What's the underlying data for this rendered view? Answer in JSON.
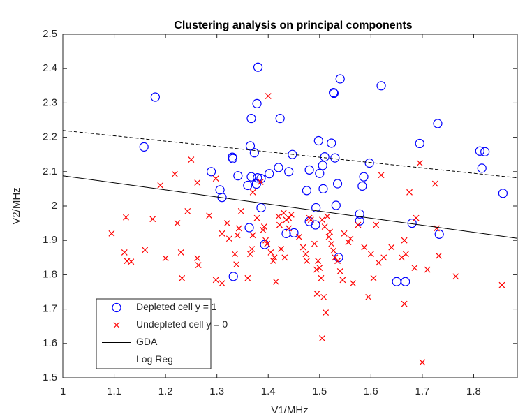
{
  "chart_data": {
    "type": "scatter",
    "title": "Clustering analysis on principal components",
    "x_label": "V1/MHz",
    "y_label": "V2/MHz",
    "xlim": [
      1,
      1.885
    ],
    "ylim": [
      1.5,
      2.5
    ],
    "xticks": [
      1,
      1.1,
      1.2,
      1.3,
      1.4,
      1.5,
      1.6,
      1.7,
      1.8
    ],
    "yticks": [
      1.5,
      1.6,
      1.7,
      1.8,
      1.9,
      2,
      2.1,
      2.2,
      2.3,
      2.4,
      2.5
    ],
    "legend": "lower-left",
    "series": [
      {
        "name": "Depleted cell y = 1",
        "color": "#0000ff",
        "marker": "circle",
        "x": [
          1.18,
          1.158,
          1.38,
          1.54,
          1.62,
          1.527,
          1.528,
          1.378,
          1.367,
          1.423,
          1.73,
          1.498,
          1.523,
          1.695,
          1.365,
          1.812,
          1.822,
          1.373,
          1.447,
          1.51,
          1.53,
          1.33,
          1.331,
          1.597,
          1.506,
          1.816,
          1.289,
          1.48,
          1.42,
          1.44,
          1.402,
          1.5,
          1.586,
          1.341,
          1.367,
          1.379,
          1.386,
          1.535,
          1.36,
          1.377,
          1.583,
          1.306,
          1.475,
          1.507,
          1.532,
          1.857,
          1.31,
          1.386,
          1.493,
          1.578,
          1.578,
          1.48,
          1.68,
          1.492,
          1.435,
          1.45,
          1.733,
          1.363,
          1.393,
          1.537,
          1.332,
          1.65,
          1.667
        ],
        "values": [
          2.317,
          2.172,
          2.404,
          2.37,
          2.35,
          2.33,
          2.328,
          2.298,
          2.255,
          2.255,
          2.24,
          2.19,
          2.183,
          2.182,
          2.175,
          2.16,
          2.158,
          2.155,
          2.15,
          2.143,
          2.14,
          2.142,
          2.138,
          2.125,
          2.118,
          2.11,
          2.1,
          2.105,
          2.112,
          2.1,
          2.094,
          2.095,
          2.085,
          2.088,
          2.085,
          2.082,
          2.08,
          2.065,
          2.06,
          2.064,
          2.058,
          2.047,
          2.045,
          2.05,
          2.002,
          2.037,
          2.025,
          1.995,
          1.995,
          1.977,
          1.957,
          1.955,
          1.95,
          1.945,
          1.92,
          1.922,
          1.918,
          1.937,
          1.888,
          1.85,
          1.795,
          1.78,
          1.78
        ]
      },
      {
        "name": "Undepleted cell y = 0",
        "color": "#ff0000",
        "marker": "cross",
        "x": [
          1.095,
          1.12,
          1.123,
          1.125,
          1.133,
          1.16,
          1.175,
          1.19,
          1.2,
          1.218,
          1.223,
          1.23,
          1.232,
          1.243,
          1.25,
          1.262,
          1.262,
          1.264,
          1.285,
          1.298,
          1.298,
          1.31,
          1.31,
          1.32,
          1.324,
          1.335,
          1.338,
          1.34,
          1.343,
          1.347,
          1.36,
          1.365,
          1.368,
          1.37,
          1.37,
          1.378,
          1.385,
          1.39,
          1.392,
          1.395,
          1.398,
          1.4,
          1.405,
          1.41,
          1.412,
          1.415,
          1.42,
          1.422,
          1.425,
          1.43,
          1.432,
          1.435,
          1.44,
          1.44,
          1.445,
          1.46,
          1.468,
          1.473,
          1.475,
          1.48,
          1.483,
          1.49,
          1.494,
          1.495,
          1.497,
          1.5,
          1.503,
          1.505,
          1.505,
          1.508,
          1.51,
          1.512,
          1.515,
          1.518,
          1.52,
          1.523,
          1.527,
          1.53,
          1.535,
          1.54,
          1.545,
          1.548,
          1.556,
          1.56,
          1.565,
          1.575,
          1.587,
          1.595,
          1.6,
          1.605,
          1.61,
          1.615,
          1.62,
          1.625,
          1.64,
          1.66,
          1.665,
          1.665,
          1.668,
          1.675,
          1.685,
          1.688,
          1.695,
          1.7,
          1.71,
          1.725,
          1.728,
          1.732,
          1.765,
          1.855
        ],
        "values": [
          1.92,
          1.865,
          1.967,
          1.84,
          1.838,
          1.872,
          1.962,
          2.06,
          1.848,
          2.093,
          1.95,
          1.865,
          1.79,
          1.985,
          2.135,
          2.068,
          1.848,
          1.828,
          1.972,
          2.08,
          1.785,
          1.775,
          1.92,
          1.95,
          1.905,
          1.86,
          1.83,
          1.915,
          1.935,
          1.985,
          1.79,
          1.86,
          1.875,
          2.04,
          1.915,
          1.965,
          2.07,
          1.93,
          1.94,
          1.9,
          1.89,
          2.32,
          1.865,
          1.84,
          1.85,
          1.78,
          1.97,
          1.945,
          1.875,
          1.98,
          1.85,
          1.96,
          1.935,
          1.965,
          1.975,
          1.91,
          1.88,
          1.86,
          1.84,
          1.965,
          1.96,
          1.89,
          1.815,
          1.745,
          1.84,
          1.82,
          1.79,
          1.96,
          1.615,
          1.735,
          1.94,
          1.69,
          1.97,
          1.91,
          1.925,
          1.89,
          1.87,
          1.85,
          1.84,
          1.81,
          1.785,
          1.92,
          1.895,
          1.905,
          1.775,
          1.945,
          1.88,
          1.735,
          1.86,
          1.79,
          1.945,
          1.835,
          2.09,
          1.85,
          1.88,
          1.85,
          1.9,
          1.715,
          1.86,
          2.04,
          1.82,
          1.965,
          2.125,
          1.545,
          1.815,
          2.065,
          1.935,
          1.855,
          1.795,
          1.77
        ]
      },
      {
        "name": "GDA",
        "color": "#000000",
        "line": "solid",
        "x": [
          1,
          1.885
        ],
        "values": [
          2.088,
          1.906
        ]
      },
      {
        "name": "Log Reg",
        "color": "#000000",
        "line": "dashed",
        "x": [
          1,
          1.885
        ],
        "values": [
          2.22,
          2.082
        ]
      }
    ]
  }
}
